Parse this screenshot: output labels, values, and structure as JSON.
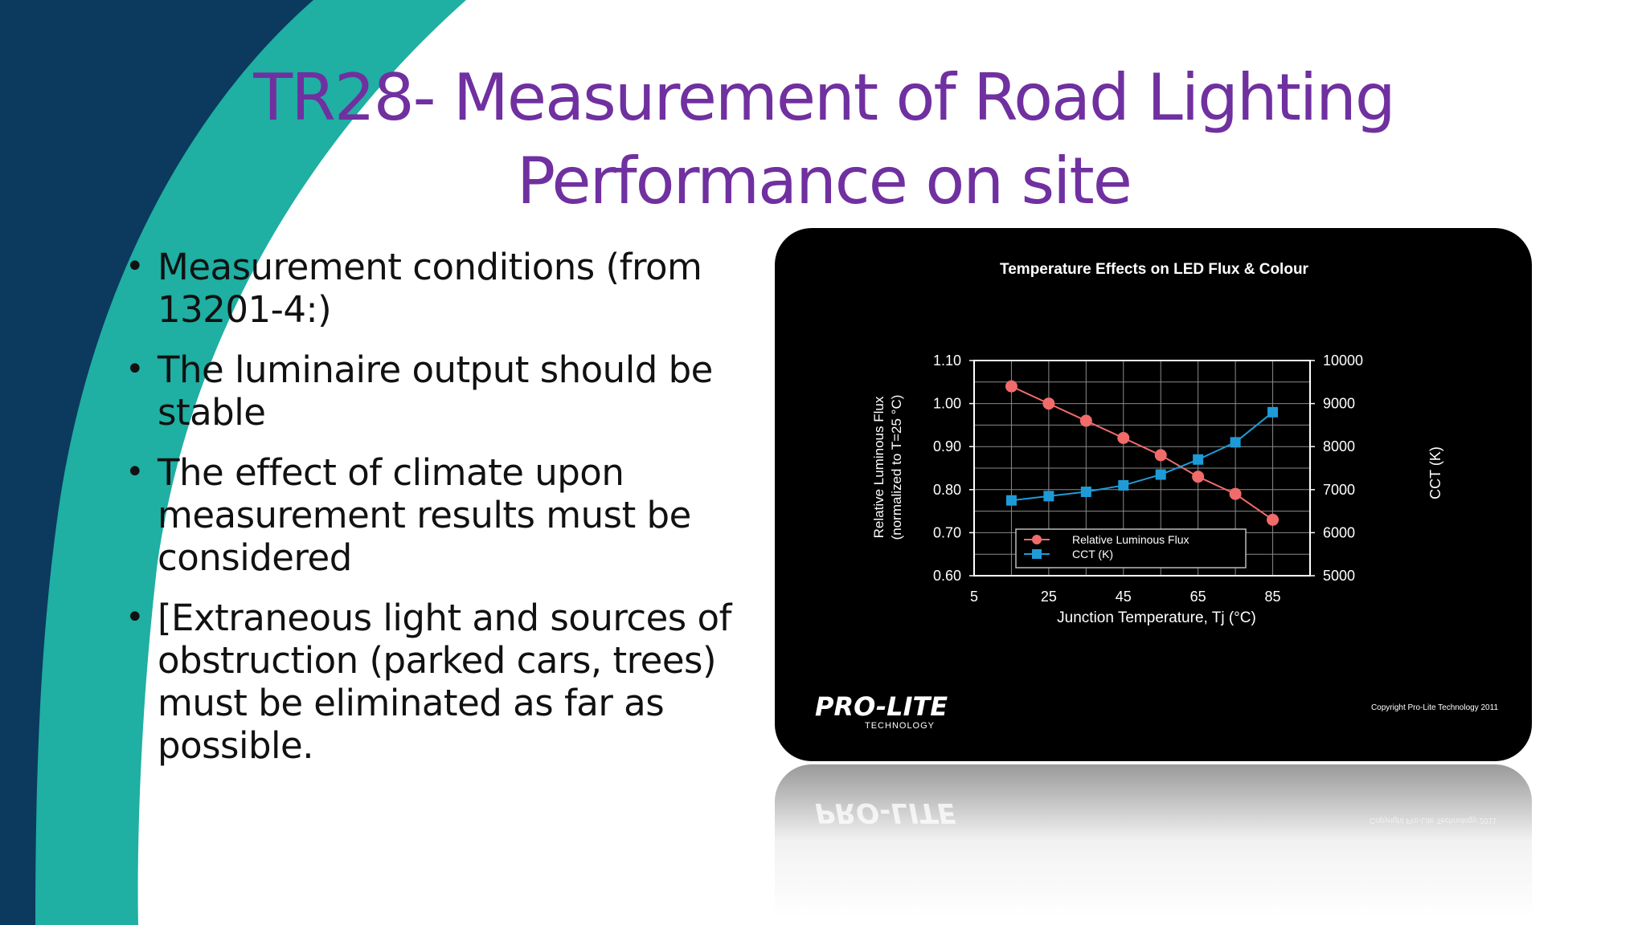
{
  "slide": {
    "title": "TR28- Measurement of Road Lighting Performance on site",
    "bullets": [
      "Measurement conditions (from 13201-4:)",
      "The luminaire output should be stable",
      "The effect of climate upon measurement results must be considered",
      "[Extraneous light and sources of obstruction (parked cars, trees) must be eliminated as far as possible."
    ]
  },
  "colors": {
    "title": "#7030A0",
    "teal": "#1FAFA3",
    "navy": "#0B3A5E",
    "flux_series": "#F26B6B",
    "cct_series": "#1E9BD7"
  },
  "chart_data": {
    "type": "line",
    "title": "Temperature Effects on LED Flux & Colour",
    "xlabel": "Junction Temperature, Tj (°C)",
    "ylabel_lines": [
      "Relative Luminous Flux",
      "(normalized to T=25 °C)"
    ],
    "y2label": "CCT (K)",
    "xlim": [
      5,
      95
    ],
    "ylim": [
      0.6,
      1.1
    ],
    "y2lim": [
      5000,
      10000
    ],
    "x_ticks": [
      "5",
      "25",
      "45",
      "65",
      "85"
    ],
    "y_ticks": [
      "0.60",
      "0.70",
      "0.80",
      "0.90",
      "1.00",
      "1.10"
    ],
    "y2_ticks": [
      "5000",
      "6000",
      "7000",
      "8000",
      "9000",
      "10000"
    ],
    "grid": true,
    "legend_position": "bottom-center",
    "x": [
      15,
      25,
      35,
      45,
      55,
      65,
      75,
      85
    ],
    "series": [
      {
        "name": "Relative Luminous Flux",
        "axis": "left",
        "marker": "circle",
        "values": [
          1.04,
          1.0,
          0.96,
          0.92,
          0.88,
          0.83,
          0.79,
          0.73
        ]
      },
      {
        "name": "CCT (K)",
        "axis": "right",
        "marker": "square",
        "values": [
          6750,
          6850,
          6950,
          7100,
          7350,
          7700,
          8100,
          8800
        ]
      }
    ],
    "copyright": "Copyright Pro-Lite Technology 2011"
  },
  "logo": {
    "main": "PRO-LITE",
    "sub": "TECHNOLOGY"
  }
}
